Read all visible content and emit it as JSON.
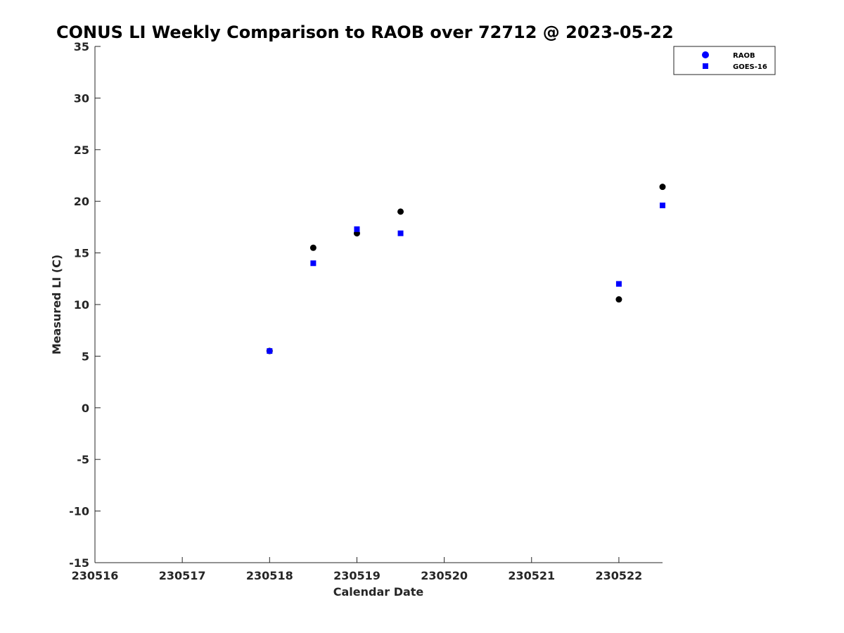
{
  "chart_data": {
    "type": "scatter",
    "title": "CONUS LI Weekly Comparison to RAOB over 72712 @ 2023-05-22",
    "xlabel": "Calendar Date",
    "ylabel": "Measured LI (C)",
    "xlim": [
      230516,
      230522.5
    ],
    "ylim": [
      -15,
      35
    ],
    "xticks": [
      230516,
      230517,
      230518,
      230519,
      230520,
      230521,
      230522
    ],
    "xtick_labels": [
      "230516",
      "230517",
      "230518",
      "230519",
      "230520",
      "230521",
      "230522"
    ],
    "yticks": [
      -15,
      -10,
      -5,
      0,
      5,
      10,
      15,
      20,
      25,
      30,
      35
    ],
    "ytick_labels": [
      "-15",
      "-10",
      "-5",
      "0",
      "5",
      "10",
      "15",
      "20",
      "25",
      "30",
      "35"
    ],
    "grid": false,
    "legend_position": "top-right",
    "series": [
      {
        "name": "RAOB",
        "marker": "circle",
        "color": "#000000",
        "legend_color": "#0000ff",
        "x": [
          230518,
          230518.5,
          230519,
          230519.5,
          230522,
          230522.5
        ],
        "y": [
          5.5,
          15.5,
          16.9,
          19.0,
          10.5,
          21.4
        ]
      },
      {
        "name": "GOES-16",
        "marker": "square",
        "color": "#0000ff",
        "legend_color": "#0000ff",
        "x": [
          230518,
          230518.5,
          230519,
          230519.5,
          230522,
          230522.5
        ],
        "y": [
          5.5,
          14.0,
          17.3,
          16.9,
          12.0,
          19.6
        ]
      }
    ]
  }
}
